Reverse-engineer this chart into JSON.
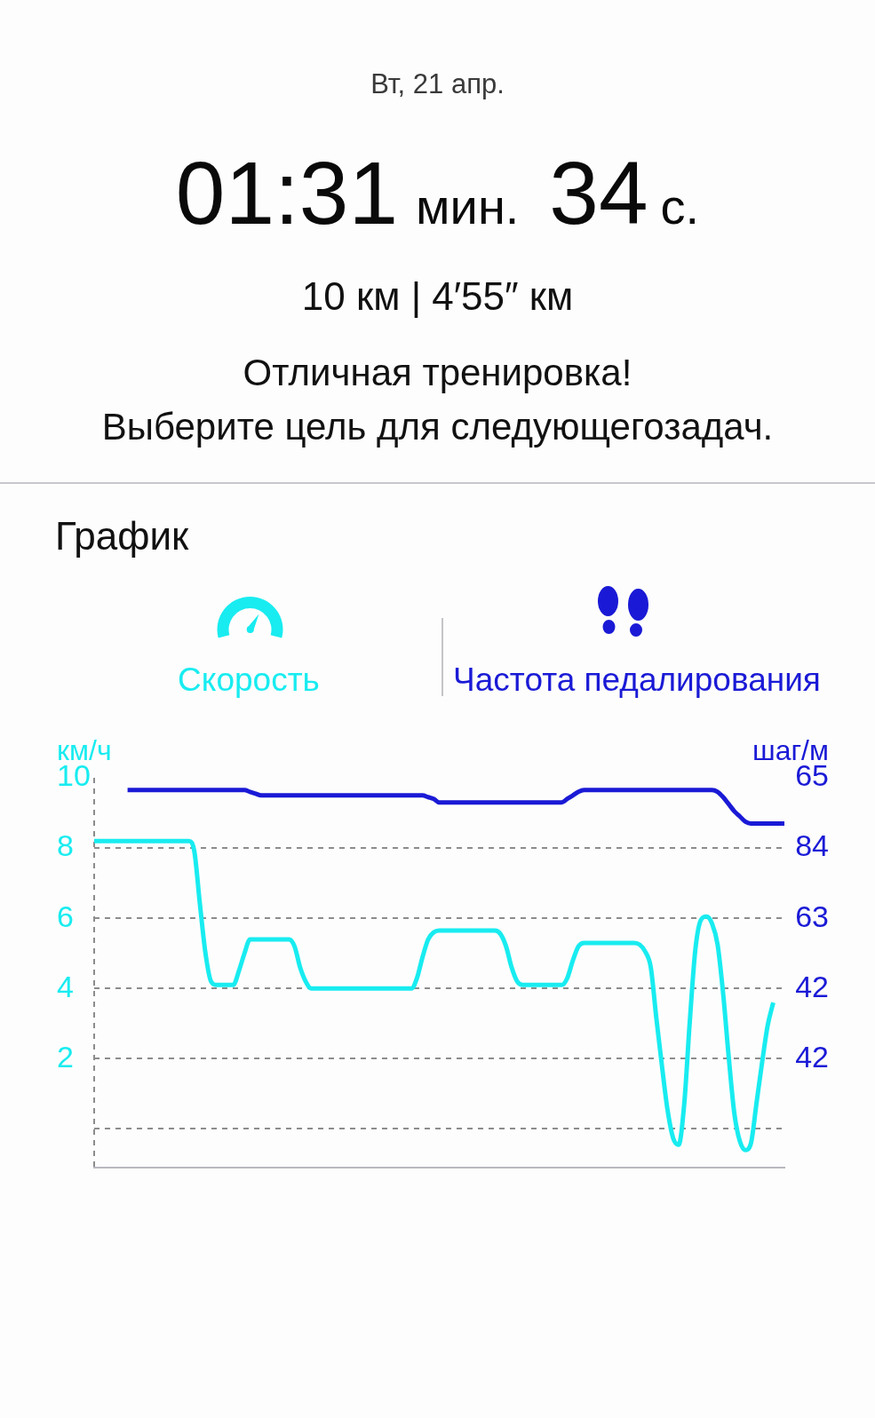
{
  "chart_data": {
    "type": "line",
    "title": "График",
    "annotations": [
      "Вт, 21 апр.",
      "01:31",
      "мин.",
      "34",
      "с.",
      "10 км | 4′55″ км",
      "Отличная тренировка!",
      "Выберите цель для следующегозадач."
    ],
    "ylabel": "км/ч",
    "y2label": "шаг/м",
    "categories": [
      null,
      null,
      null,
      null,
      null,
      null,
      null,
      null,
      null,
      null,
      null,
      null,
      null,
      null,
      null,
      null,
      null,
      null,
      null,
      null,
      null,
      null,
      null,
      null,
      null,
      null,
      null,
      null,
      null,
      null,
      null,
      null,
      null,
      null,
      null,
      null,
      null,
      null,
      null,
      null,
      null,
      null,
      null,
      null,
      null,
      null,
      null,
      null,
      null,
      null,
      null,
      null,
      null,
      null,
      null,
      null,
      null,
      null,
      null,
      null,
      null,
      null,
      null,
      null,
      null,
      null,
      null,
      null,
      null,
      null,
      null,
      null,
      null,
      null,
      null,
      null,
      null,
      null,
      null,
      null,
      null,
      null,
      null,
      null,
      null,
      null,
      null,
      null,
      null,
      null,
      null,
      null,
      null,
      null,
      null,
      null,
      null,
      null,
      null,
      null,
      null,
      null,
      null,
      null,
      null,
      null,
      null,
      null,
      null,
      null,
      null,
      null,
      null,
      null,
      null,
      null,
      null,
      null,
      null,
      null,
      null,
      null,
      null,
      null,
      null
    ],
    "y2_categories": [
      "65",
      "84",
      "63",
      "42",
      "42"
    ],
    "series": [
      {
        "name": "Скорость",
        "color": "#18ecf0",
        "values": [
          8.2,
          8.2,
          8.2,
          8.2,
          8.2,
          8.2,
          8.2,
          8.2,
          8.2,
          8.2,
          8.2,
          8.2,
          8.2,
          8.2,
          8.2,
          8.2,
          8.2,
          8.2,
          7.9,
          6.4,
          5,
          4.2,
          4.1,
          4.1,
          4.1,
          4.1,
          4.5,
          5,
          5.4,
          5.4,
          5.4,
          5.4,
          5.4,
          5.4,
          5.4,
          5.4,
          5.2,
          4.6,
          4.2,
          4,
          4,
          4,
          4,
          4,
          4,
          4,
          4,
          4,
          4,
          4,
          4,
          4,
          4,
          4,
          4,
          4,
          4,
          4,
          4.3,
          4.9,
          5.4,
          5.6,
          5.65,
          5.65,
          5.65,
          5.65,
          5.65,
          5.65,
          5.65,
          5.65,
          5.65,
          5.65,
          5.65,
          5.55,
          5.2,
          4.6,
          4.2,
          4.1,
          4.1,
          4.1,
          4.1,
          4.1,
          4.1,
          4.1,
          4.1,
          4.3,
          4.8,
          5.2,
          5.3,
          5.3,
          5.3,
          5.3,
          5.3,
          5.3,
          5.3,
          5.3,
          5.3,
          5.3,
          5.25,
          5.05,
          4.6,
          3.15,
          1.8,
          0.55,
          -0.25,
          -0.45,
          0.7,
          3.05,
          5.1,
          5.95,
          6.05,
          5.85,
          5.25,
          3.85,
          2.05,
          0.45,
          -0.35,
          -0.6,
          -0.4,
          0.75,
          1.9,
          2.95,
          3.6,
          null,
          null
        ]
      },
      {
        "name": "Частота педалирования",
        "color": "#1a1ad6",
        "values": [
          null,
          null,
          null,
          null,
          null,
          null,
          9.65,
          9.65,
          9.65,
          9.65,
          9.65,
          9.65,
          9.65,
          9.65,
          9.65,
          9.65,
          9.65,
          9.65,
          9.65,
          9.65,
          9.65,
          9.65,
          9.65,
          9.65,
          9.65,
          9.65,
          9.65,
          9.65,
          9.6,
          9.55,
          9.5,
          9.5,
          9.5,
          9.5,
          9.5,
          9.5,
          9.5,
          9.5,
          9.5,
          9.5,
          9.5,
          9.5,
          9.5,
          9.5,
          9.5,
          9.5,
          9.5,
          9.5,
          9.5,
          9.5,
          9.5,
          9.5,
          9.5,
          9.5,
          9.5,
          9.5,
          9.5,
          9.5,
          9.5,
          9.5,
          9.45,
          9.4,
          9.3,
          9.3,
          9.3,
          9.3,
          9.3,
          9.3,
          9.3,
          9.3,
          9.3,
          9.3,
          9.3,
          9.3,
          9.3,
          9.3,
          9.3,
          9.3,
          9.3,
          9.3,
          9.3,
          9.3,
          9.3,
          9.3,
          9.3,
          9.4,
          9.5,
          9.6,
          9.65,
          9.65,
          9.65,
          9.65,
          9.65,
          9.65,
          9.65,
          9.65,
          9.65,
          9.65,
          9.65,
          9.65,
          9.65,
          9.65,
          9.65,
          9.65,
          9.65,
          9.65,
          9.65,
          9.65,
          9.65,
          9.65,
          9.65,
          9.65,
          9.6,
          9.45,
          9.25,
          9.05,
          8.9,
          8.75,
          8.7,
          8.7,
          8.7,
          8.7,
          8.7,
          8.7,
          8.7
        ]
      }
    ],
    "ylim": [
      -1.1,
      10
    ],
    "yticks": [
      {
        "value": 0,
        "label": null
      },
      2,
      4,
      6,
      8,
      10
    ],
    "grid": "y",
    "legend": "top"
  }
}
